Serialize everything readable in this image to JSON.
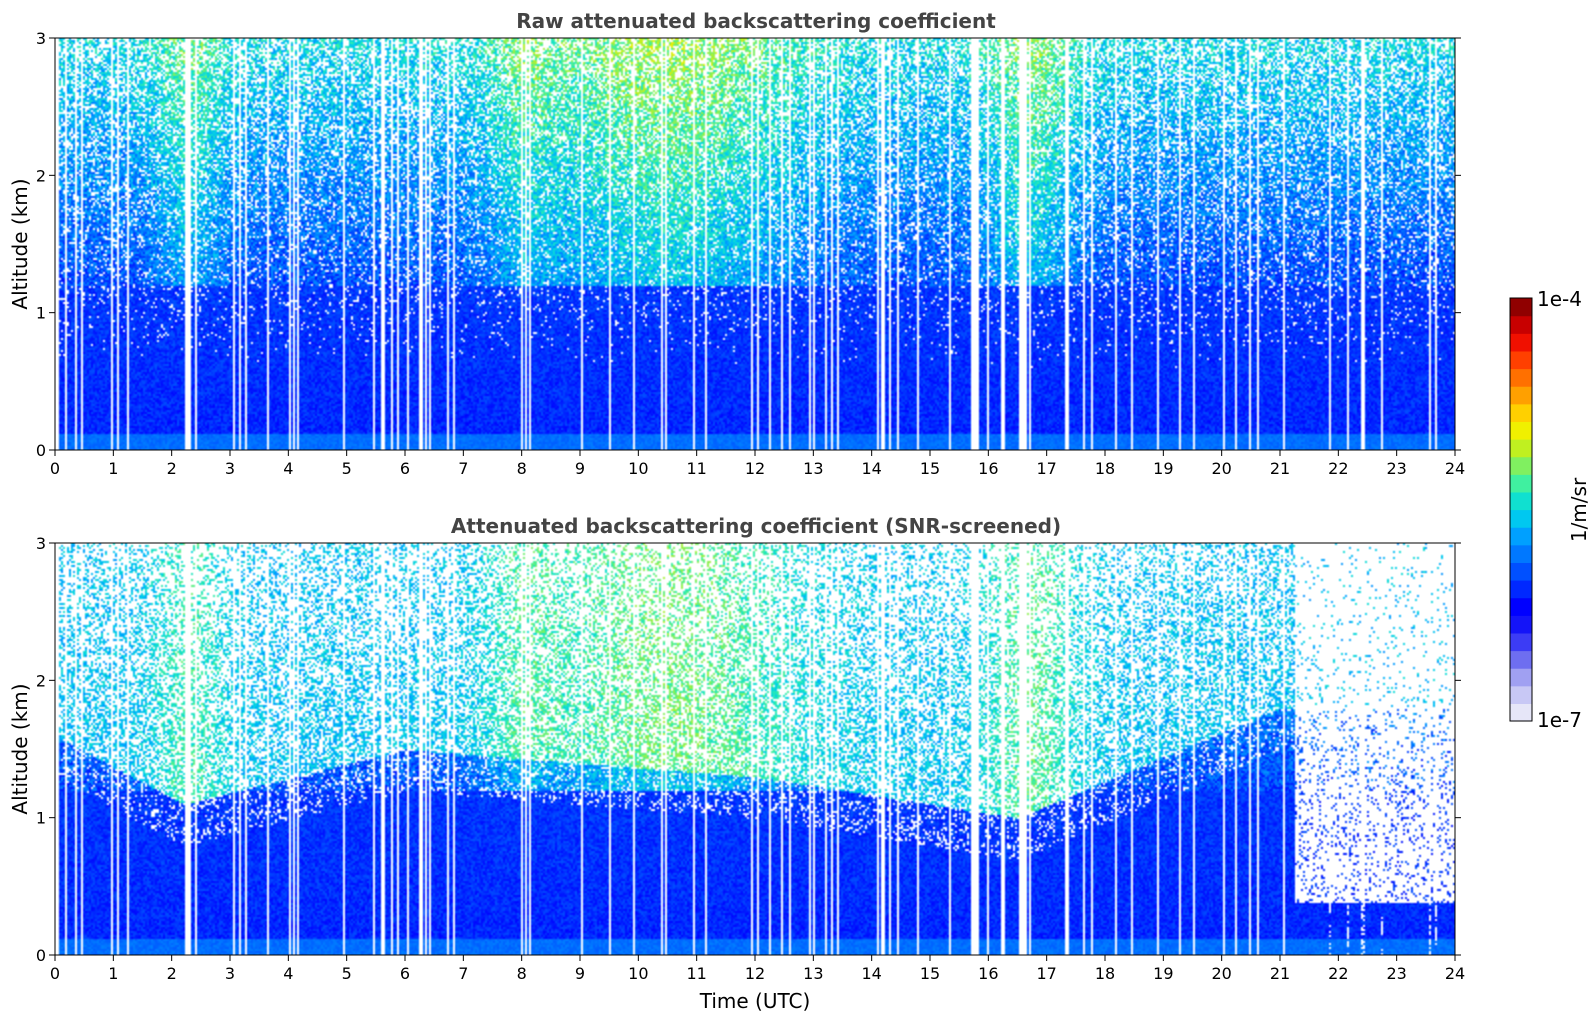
{
  "chart_data": [
    {
      "type": "heatmap",
      "title": "Raw attenuated backscattering coefficient",
      "xlabel": "",
      "ylabel": "Altitude (km)",
      "xlim": [
        0,
        24
      ],
      "ylim": [
        0,
        3
      ],
      "x_ticks": [
        "0",
        "1",
        "2",
        "3",
        "4",
        "5",
        "6",
        "7",
        "8",
        "9",
        "10",
        "11",
        "12",
        "13",
        "14",
        "15",
        "16",
        "17",
        "18",
        "19",
        "20",
        "21",
        "22",
        "23",
        "24"
      ],
      "y_ticks": [
        "0",
        "1",
        "2",
        "3"
      ],
      "color_scale": "log",
      "value_range": [
        1e-07,
        0.0001
      ],
      "approx_profile": [
        {
          "altitude_km": 0.1,
          "value": 2e-06
        },
        {
          "altitude_km": 0.5,
          "value": 1e-06
        },
        {
          "altitude_km": 1.0,
          "value": 6e-07
        },
        {
          "altitude_km": 2.0,
          "value": 1.5e-06
        },
        {
          "altitude_km": 2.8,
          "value": 3e-06
        }
      ]
    },
    {
      "type": "heatmap",
      "title": "Attenuated backscattering coefficient (SNR-screened)",
      "xlabel": "Time (UTC)",
      "ylabel": "Altitude (km)",
      "xlim": [
        0,
        24
      ],
      "ylim": [
        0,
        3
      ],
      "x_ticks": [
        "0",
        "1",
        "2",
        "3",
        "4",
        "5",
        "6",
        "7",
        "8",
        "9",
        "10",
        "11",
        "12",
        "13",
        "14",
        "15",
        "16",
        "17",
        "18",
        "19",
        "20",
        "21",
        "22",
        "23",
        "24"
      ],
      "y_ticks": [
        "0",
        "1",
        "2",
        "3"
      ],
      "color_scale": "log",
      "value_range": [
        1e-07,
        0.0001
      ],
      "approx_boundary_layer_top_km": [
        {
          "time": 0,
          "value": 1.6
        },
        {
          "time": 2.2,
          "value": 1.1
        },
        {
          "time": 6,
          "value": 1.5
        },
        {
          "time": 12,
          "value": 1.3
        },
        {
          "time": 16.5,
          "value": 1.0
        },
        {
          "time": 21,
          "value": 1.8
        }
      ]
    }
  ],
  "colorbar": {
    "label": "1/m/sr",
    "max_label": "1e-4",
    "min_label": "1e-7",
    "colors": [
      "#e6e6f8",
      "#c8c8f5",
      "#a0a0f2",
      "#6e6ef0",
      "#3c3cf5",
      "#1414f8",
      "#0000ff",
      "#0028ff",
      "#0050ff",
      "#0078ff",
      "#00a0ff",
      "#00c8f0",
      "#10e0d0",
      "#40f0a0",
      "#80f060",
      "#c0f020",
      "#f0f000",
      "#ffd000",
      "#ffa000",
      "#ff7000",
      "#ff4000",
      "#f01000",
      "#c80000",
      "#900000"
    ]
  }
}
